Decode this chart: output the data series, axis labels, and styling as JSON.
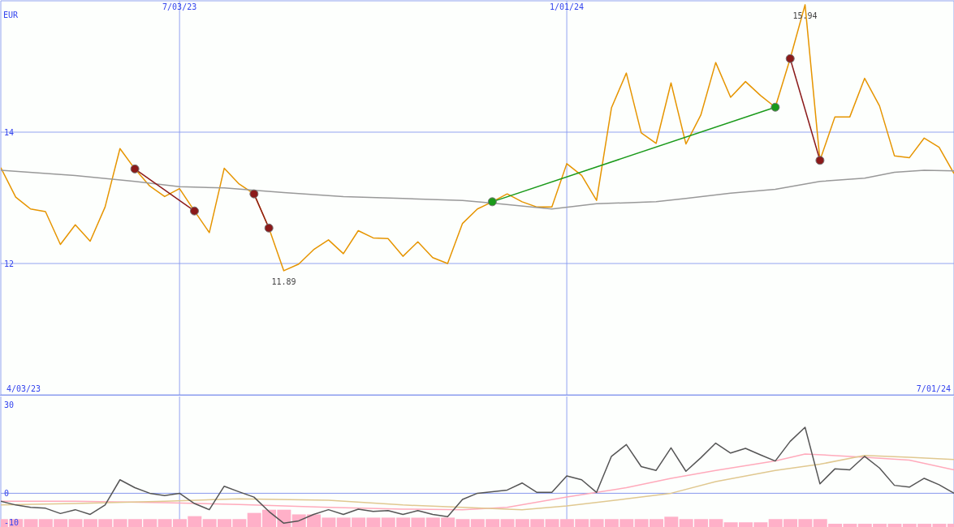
{
  "chart_data": [
    {
      "type": "line",
      "ylabel": "EUR",
      "x": [
        "2023-04-10",
        "2023-04-17",
        "2023-04-24",
        "2023-05-01",
        "2023-05-08",
        "2023-05-15",
        "2023-05-22",
        "2023-05-29",
        "2023-06-05",
        "2023-06-12",
        "2023-06-19",
        "2023-06-26",
        "2023-07-03",
        "2023-07-10",
        "2023-07-17",
        "2023-07-24",
        "2023-07-31",
        "2023-08-07",
        "2023-08-14",
        "2023-08-21",
        "2023-08-28",
        "2023-09-04",
        "2023-09-11",
        "2023-09-18",
        "2023-09-25",
        "2023-10-02",
        "2023-10-09",
        "2023-10-16",
        "2023-10-23",
        "2023-10-30",
        "2023-11-06",
        "2023-11-13",
        "2023-11-20",
        "2023-11-27",
        "2023-12-04",
        "2023-12-11",
        "2023-12-18",
        "2023-12-25",
        "2024-01-01",
        "2024-01-08",
        "2024-01-15",
        "2024-01-22",
        "2024-01-29",
        "2024-02-05",
        "2024-02-12",
        "2024-02-19",
        "2024-02-26",
        "2024-03-04",
        "2024-03-11",
        "2024-03-18",
        "2024-03-25",
        "2024-04-01",
        "2024-04-08",
        "2024-04-15",
        "2024-04-22",
        "2024-04-29",
        "2024-05-06",
        "2024-05-13",
        "2024-05-20",
        "2024-05-27",
        "2024-06-03",
        "2024-06-10",
        "2024-06-17",
        "2024-06-24",
        "2024-07-01"
      ],
      "series": [
        {
          "color": "#e69500",
          "values": [
            13.46,
            13.01,
            12.83,
            12.79,
            12.29,
            12.59,
            12.34,
            12.86,
            13.75,
            13.44,
            13.18,
            13.02,
            13.14,
            12.8,
            12.47,
            13.45,
            13.21,
            13.06,
            12.54,
            11.89,
            11.99,
            12.21,
            12.36,
            12.15,
            12.5,
            12.39,
            12.38,
            12.11,
            12.33,
            12.09,
            12.0,
            12.61,
            12.83,
            12.94,
            13.06,
            12.94,
            12.86,
            12.86,
            13.52,
            13.34,
            12.96,
            14.37,
            14.9,
            13.99,
            13.83,
            14.75,
            13.82,
            14.26,
            15.06,
            14.53,
            14.77,
            14.56,
            14.38,
            15.12,
            15.94,
            13.57,
            14.23,
            14.23,
            14.82,
            14.4,
            13.64,
            13.61,
            13.91,
            13.77,
            13.37
          ]
        },
        {
          "color": "#999999",
          "x": [
            "2023-04-10",
            "2023-05-15",
            "2023-06-12",
            "2023-07-03",
            "2023-07-24",
            "2023-08-21",
            "2023-09-18",
            "2023-10-16",
            "2023-11-13",
            "2023-11-27",
            "2023-12-25",
            "2024-01-15",
            "2024-02-12",
            "2024-02-26",
            "2024-03-18",
            "2024-04-08",
            "2024-04-29",
            "2024-05-20",
            "2024-06-03",
            "2024-06-17",
            "2024-07-01"
          ],
          "values": [
            13.42,
            13.34,
            13.25,
            13.17,
            13.15,
            13.08,
            13.02,
            12.99,
            12.96,
            12.92,
            12.83,
            12.91,
            12.94,
            12.99,
            13.07,
            13.13,
            13.25,
            13.3,
            13.39,
            13.42,
            13.41
          ]
        },
        {
          "color": "#8b1a1a",
          "marker": "circle",
          "x": [
            "2023-06-12",
            "2023-07-10"
          ],
          "values": [
            13.44,
            12.8
          ]
        },
        {
          "color": "#8b1a1a",
          "marker": "circle",
          "x": [
            "2023-08-07",
            "2023-08-14"
          ],
          "values": [
            13.06,
            12.54
          ]
        },
        {
          "color": "#1a9a1a",
          "marker": "circle",
          "x": [
            "2023-11-27",
            "2024-04-08"
          ],
          "values": [
            12.94,
            14.38
          ]
        },
        {
          "color": "#8b1a1a",
          "marker": "circle",
          "x": [
            "2024-04-15",
            "2024-04-29"
          ],
          "values": [
            15.12,
            13.57
          ]
        }
      ],
      "xlim": [
        "2023-04-10",
        "2024-07-01"
      ],
      "xticks": [
        {
          "value": "2023-07-03",
          "label": "7/03/23"
        },
        {
          "value": "2024-01-01",
          "label": "1/01/24"
        }
      ],
      "ylim": [
        10,
        16
      ],
      "yticks": [
        12,
        14
      ],
      "grid": true,
      "annotations": [
        {
          "text": "15.94",
          "x": "2024-04-22",
          "y": 15.94
        },
        {
          "text": "11.89",
          "x": "2023-08-21",
          "y": 11.89
        },
        "4/03/23",
        "7/01/24"
      ]
    },
    {
      "type": "line",
      "x": [
        "2023-04-10",
        "2023-04-17",
        "2023-04-24",
        "2023-05-01",
        "2023-05-08",
        "2023-05-15",
        "2023-05-22",
        "2023-05-29",
        "2023-06-05",
        "2023-06-12",
        "2023-06-19",
        "2023-06-26",
        "2023-07-03",
        "2023-07-10",
        "2023-07-17",
        "2023-07-24",
        "2023-07-31",
        "2023-08-07",
        "2023-08-14",
        "2023-08-21",
        "2023-08-28",
        "2023-09-04",
        "2023-09-11",
        "2023-09-18",
        "2023-09-25",
        "2023-10-02",
        "2023-10-09",
        "2023-10-16",
        "2023-10-23",
        "2023-10-30",
        "2023-11-06",
        "2023-11-13",
        "2023-11-20",
        "2023-11-27",
        "2023-12-04",
        "2023-12-11",
        "2023-12-18",
        "2023-12-25",
        "2024-01-01",
        "2024-01-08",
        "2024-01-15",
        "2024-01-22",
        "2024-01-29",
        "2024-02-05",
        "2024-02-12",
        "2024-02-19",
        "2024-02-26",
        "2024-03-04",
        "2024-03-11",
        "2024-03-18",
        "2024-03-25",
        "2024-04-01",
        "2024-04-08",
        "2024-04-15",
        "2024-04-22",
        "2024-04-29",
        "2024-05-06",
        "2024-05-13",
        "2024-05-20",
        "2024-05-27",
        "2024-06-03",
        "2024-06-10",
        "2024-06-17",
        "2024-06-24",
        "2024-07-01"
      ],
      "series": [
        {
          "type": "bar",
          "color": "#ffb0c8",
          "base": [
            -11.5,
            -11.5,
            -11.5,
            -11.5,
            -11.5,
            -11.5,
            -11.5,
            -11.5,
            -11.5,
            -11.5,
            -11.5,
            -11.5,
            -11.5,
            -11.5,
            -11.5,
            -11.5,
            -11.5,
            -11.5,
            -11.5,
            -11.5,
            -11.5,
            -11.5,
            -11.5,
            -11.5,
            -11.5,
            -11.5,
            -11.5,
            -11.5,
            -11.5,
            -11.5,
            -11.5,
            -11.5,
            -11.5,
            -11.5,
            -11.5,
            -11.5,
            -11.5,
            -11.5,
            -11.5,
            -11.5,
            -11.5,
            -11.5,
            -11.5,
            -11.5,
            -11.5,
            -11.5,
            -11.5,
            -11.5,
            -11.5,
            -11.5,
            -11.5,
            -11.5,
            -11.5,
            -11.5,
            -11.5,
            -11.5,
            -11.5,
            -11.5,
            -11.5,
            -11.5,
            -11.5,
            -11.5,
            -11.5,
            -11.5,
            -11.5
          ],
          "values": [
            2.7,
            2.7,
            2.7,
            2.7,
            2.7,
            2.7,
            2.7,
            2.7,
            2.7,
            2.7,
            2.7,
            2.7,
            2.7,
            3.7,
            2.7,
            2.7,
            2.7,
            4.8,
            5.9,
            5.9,
            4.3,
            4.3,
            3.2,
            3.2,
            3.2,
            3.2,
            3.2,
            3.2,
            3.2,
            3.2,
            3.2,
            2.7,
            2.7,
            2.7,
            2.7,
            2.7,
            2.7,
            2.7,
            2.7,
            2.7,
            2.7,
            2.7,
            2.7,
            2.7,
            2.7,
            3.5,
            2.7,
            2.7,
            2.7,
            1.6,
            1.6,
            1.6,
            2.7,
            2.7,
            2.7,
            2.7,
            1.1,
            1.1,
            1.1,
            1.1,
            1.1,
            1.1,
            1.1,
            1.1,
            1.1
          ]
        },
        {
          "color": "#ffaabb",
          "x": [
            "2023-04-10",
            "2023-05-15",
            "2023-06-26",
            "2023-07-31",
            "2023-09-11",
            "2023-10-16",
            "2023-11-13",
            "2023-12-04",
            "2024-01-01",
            "2024-01-29",
            "2024-02-19",
            "2024-03-11",
            "2024-04-08",
            "2024-04-22",
            "2024-05-20",
            "2024-06-10",
            "2024-07-01"
          ],
          "values": [
            -2.7,
            -2.7,
            -3.2,
            -3.8,
            -4.8,
            -5.4,
            -5.6,
            -4.8,
            -1.3,
            1.9,
            5.1,
            7.8,
            11.0,
            13.4,
            12.3,
            11.3,
            8.0
          ]
        },
        {
          "color": "#e0c890",
          "x": [
            "2023-04-10",
            "2023-05-15",
            "2023-06-26",
            "2023-07-31",
            "2023-09-11",
            "2023-10-16",
            "2023-11-13",
            "2023-12-11",
            "2024-01-01",
            "2024-01-29",
            "2024-02-19",
            "2024-03-11",
            "2024-04-08",
            "2024-04-29",
            "2024-05-20",
            "2024-06-10",
            "2024-07-01"
          ],
          "values": [
            -4.0,
            -3.5,
            -2.7,
            -1.9,
            -2.4,
            -4.0,
            -4.8,
            -5.6,
            -4.3,
            -1.9,
            0,
            4.0,
            7.8,
            9.9,
            12.9,
            12.3,
            11.5
          ]
        },
        {
          "color": "#555555",
          "values": [
            -2.7,
            -4.0,
            -4.8,
            -5.1,
            -6.9,
            -5.6,
            -7.2,
            -4.0,
            4.6,
            1.9,
            0,
            -0.8,
            0,
            -3.5,
            -5.6,
            2.4,
            0.5,
            -1.3,
            -6.2,
            -10.2,
            -9.4,
            -7.2,
            -5.6,
            -7.2,
            -5.4,
            -6.2,
            -5.9,
            -7.2,
            -5.9,
            -7.2,
            -8.0,
            -2.1,
            0,
            0.5,
            1.1,
            3.5,
            0.3,
            0.3,
            5.9,
            4.6,
            0.3,
            12.6,
            16.6,
            9.1,
            7.8,
            15.5,
            7.5,
            12.1,
            17.1,
            13.7,
            15.3,
            13.1,
            11.0,
            17.7,
            22.5,
            3.2,
            8.3,
            8.0,
            12.6,
            8.6,
            2.7,
            2.1,
            5.1,
            2.9,
            0
          ]
        }
      ],
      "xlim": [
        "2023-04-10",
        "2024-07-01"
      ],
      "xticks": [
        {
          "value": "2023-07-03",
          "label": null
        },
        {
          "value": "2024-01-01",
          "label": null
        }
      ],
      "ylim": [
        -11.5,
        33
      ],
      "yticks": [
        30,
        0,
        -10
      ],
      "grid": "x",
      "tick_labels": "y",
      "ref_lines": [
        {
          "axis": "y",
          "value": 0,
          "color": "#8899ee"
        }
      ]
    }
  ]
}
